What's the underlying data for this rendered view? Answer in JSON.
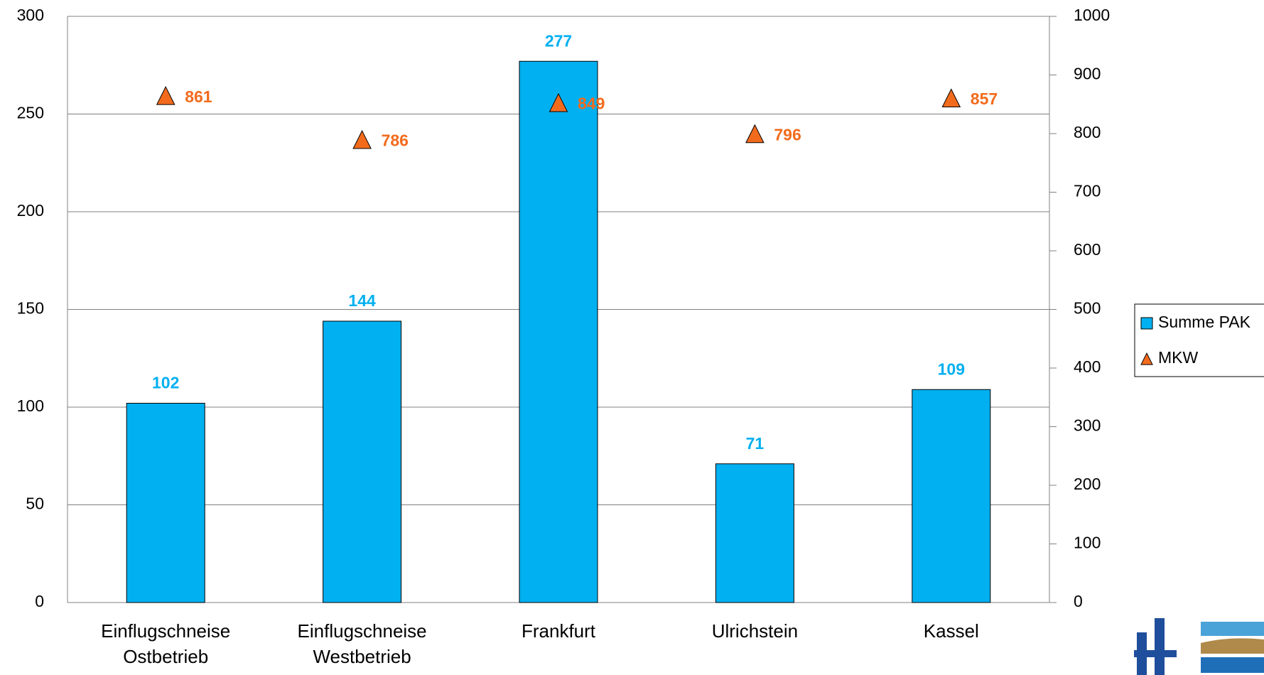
{
  "chart_data": {
    "type": "bar",
    "categories": [
      "Einflugschneise Ostbetrieb",
      "Einflugschneise Westbetrieb",
      "Frankfurt",
      "Ulrichstein",
      "Kassel"
    ],
    "series": [
      {
        "name": "Summe PAK",
        "color": "#00b0f0",
        "values": [
          102,
          144,
          277,
          71,
          109
        ]
      },
      {
        "name": "MKW",
        "color": "#f26b1d",
        "type": "scatter",
        "axis": "y2",
        "values": [
          861,
          786,
          849,
          796,
          857
        ]
      }
    ],
    "ylim": [
      0,
      300
    ],
    "yticks": [
      0,
      50,
      100,
      150,
      200,
      250,
      300
    ],
    "y2lim": [
      0,
      1000
    ],
    "y2ticks": [
      0,
      100,
      200,
      300,
      400,
      500,
      600,
      700,
      800,
      900,
      1000
    ],
    "grid": true,
    "legend": "right"
  }
}
